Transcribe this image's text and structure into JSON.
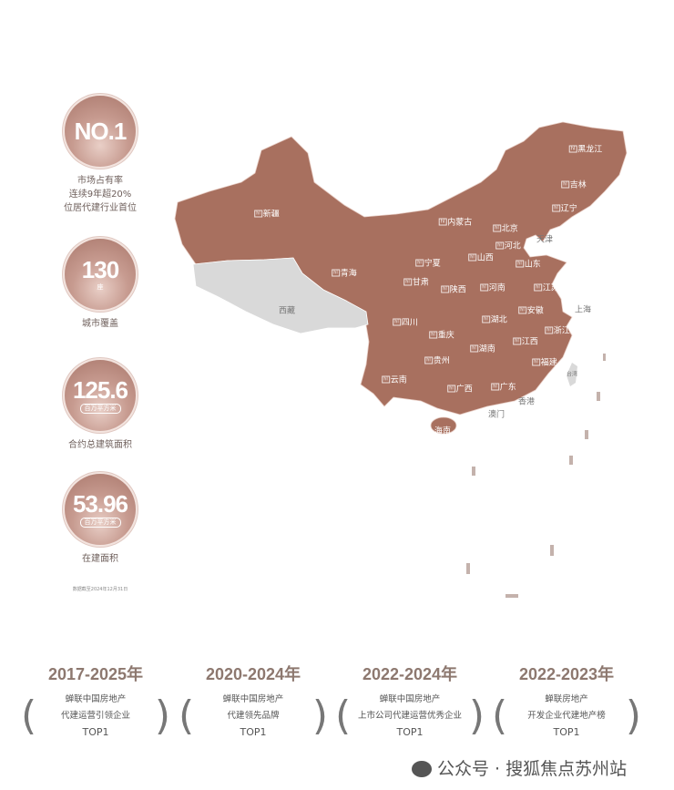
{
  "stats": [
    {
      "value": "NO.1",
      "unit": "",
      "desc": [
        "市场占有率",
        "连续9年超20%",
        "位居代建行业首位"
      ]
    },
    {
      "value": "130",
      "unit": "座",
      "desc": [
        "城市覆盖"
      ]
    },
    {
      "value": "125.6",
      "unit": "百万平方米",
      "desc": [
        "合约总建筑面积"
      ]
    },
    {
      "value": "53.96",
      "unit": "百万平方米",
      "desc": [
        "在建面积"
      ]
    }
  ],
  "data_note": "数据截至2024年12月31日",
  "map": {
    "covered_color": "#a8705f",
    "uncovered_color": "#d9d9d9",
    "logo_mark": "hl",
    "provinces": [
      {
        "name": "黑龙江",
        "covered": true
      },
      {
        "name": "吉林",
        "covered": true
      },
      {
        "name": "辽宁",
        "covered": true
      },
      {
        "name": "内蒙古",
        "covered": true
      },
      {
        "name": "新疆",
        "covered": true
      },
      {
        "name": "北京",
        "covered": true
      },
      {
        "name": "天津",
        "covered": false
      },
      {
        "name": "河北",
        "covered": true
      },
      {
        "name": "山西",
        "covered": true
      },
      {
        "name": "宁夏",
        "covered": true
      },
      {
        "name": "青海",
        "covered": true
      },
      {
        "name": "山东",
        "covered": true
      },
      {
        "name": "甘肃",
        "covered": true
      },
      {
        "name": "陕西",
        "covered": true
      },
      {
        "name": "河南",
        "covered": true
      },
      {
        "name": "江苏",
        "covered": true
      },
      {
        "name": "西藏",
        "covered": false
      },
      {
        "name": "安徽",
        "covered": true
      },
      {
        "name": "上海",
        "covered": false
      },
      {
        "name": "四川",
        "covered": true
      },
      {
        "name": "湖北",
        "covered": true
      },
      {
        "name": "重庆",
        "covered": true
      },
      {
        "name": "浙江",
        "covered": true
      },
      {
        "name": "江西",
        "covered": true
      },
      {
        "name": "湖南",
        "covered": true
      },
      {
        "name": "贵州",
        "covered": true
      },
      {
        "name": "福建",
        "covered": true
      },
      {
        "name": "云南",
        "covered": true
      },
      {
        "name": "广西",
        "covered": true
      },
      {
        "name": "广东",
        "covered": true
      },
      {
        "name": "香港",
        "covered": false
      },
      {
        "name": "澳门",
        "covered": false
      },
      {
        "name": "海南",
        "covered": false
      },
      {
        "name": "台湾",
        "covered": false
      }
    ]
  },
  "awards": [
    {
      "period": "2017-2025年",
      "lines": [
        "蝉联中国房地产",
        "代建运营引领企业"
      ],
      "rank": "TOP1"
    },
    {
      "period": "2020-2024年",
      "lines": [
        "蝉联中国房地产",
        "代建领先品牌"
      ],
      "rank": "TOP1"
    },
    {
      "period": "2022-2024年",
      "lines": [
        "蝉联中国房地产",
        "上市公司代建运营优秀企业"
      ],
      "rank": "TOP1"
    },
    {
      "period": "2022-2023年",
      "lines": [
        "蝉联房地产",
        "开发企业代建地产榜"
      ],
      "rank": "TOP1"
    }
  ],
  "watermark": {
    "icon": "wechat-icon",
    "text": "公众号 · 搜狐焦点苏州站"
  }
}
